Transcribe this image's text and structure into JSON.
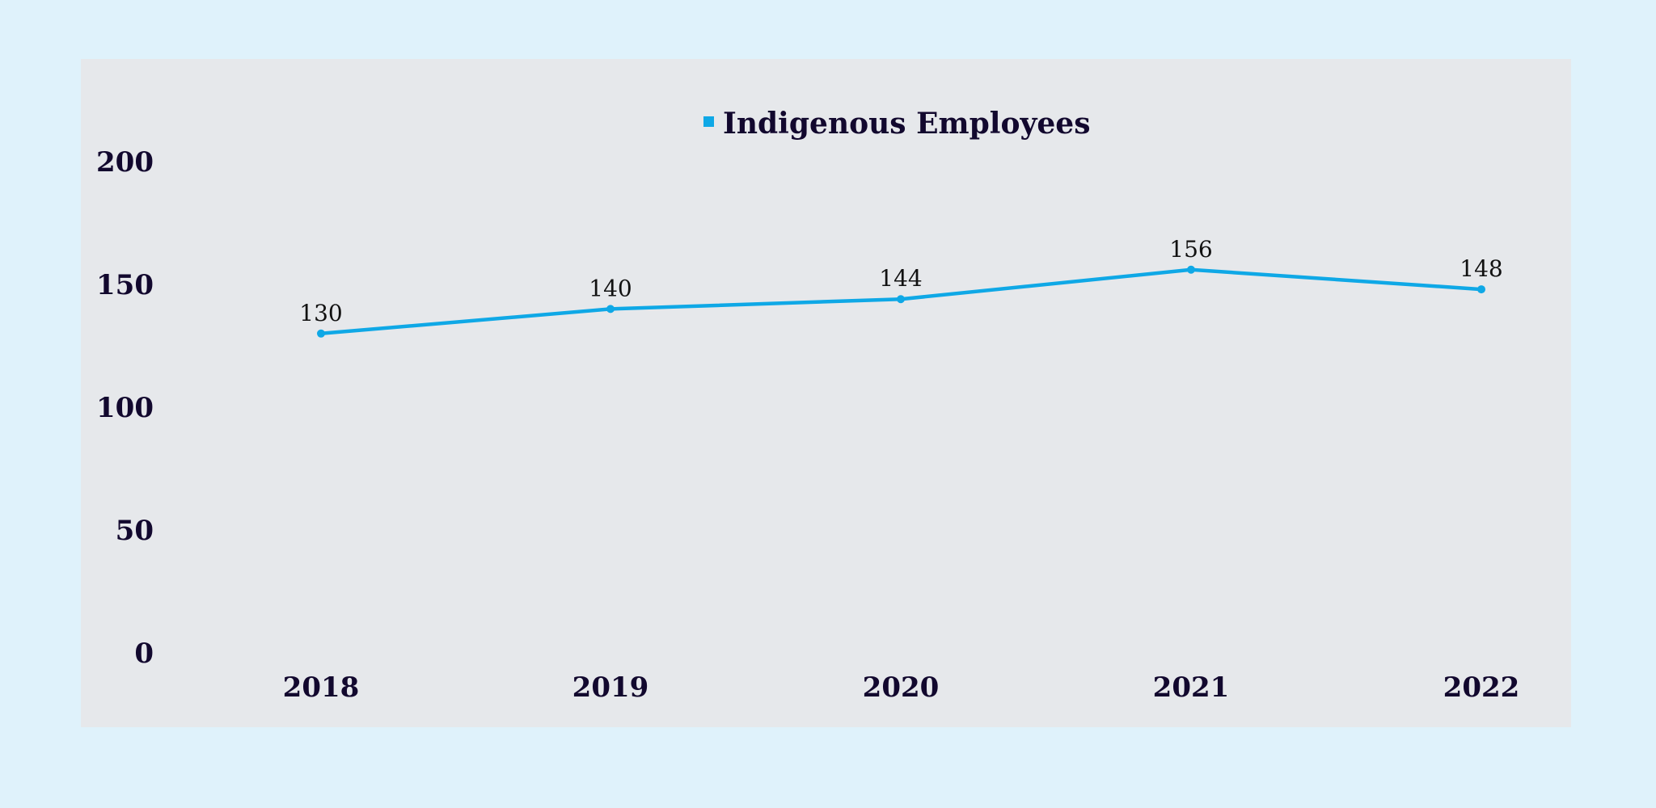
{
  "chart_data": {
    "type": "line",
    "title": "",
    "xlabel": "",
    "ylabel": "",
    "categories": [
      "2018",
      "2019",
      "2020",
      "2021",
      "2022"
    ],
    "series": [
      {
        "name": "Indigenous Employees",
        "values": [
          130,
          140,
          144,
          156,
          148
        ],
        "color": "#0fa8e6"
      }
    ],
    "ylim": [
      0,
      200
    ],
    "yticks": [
      0,
      50,
      100,
      150,
      200
    ],
    "grid": false,
    "legend": "top-center",
    "data_labels": true
  },
  "colors": {
    "page_background": "#dff2fb",
    "panel_background": "#e6e8eb",
    "text": "#12082e"
  }
}
